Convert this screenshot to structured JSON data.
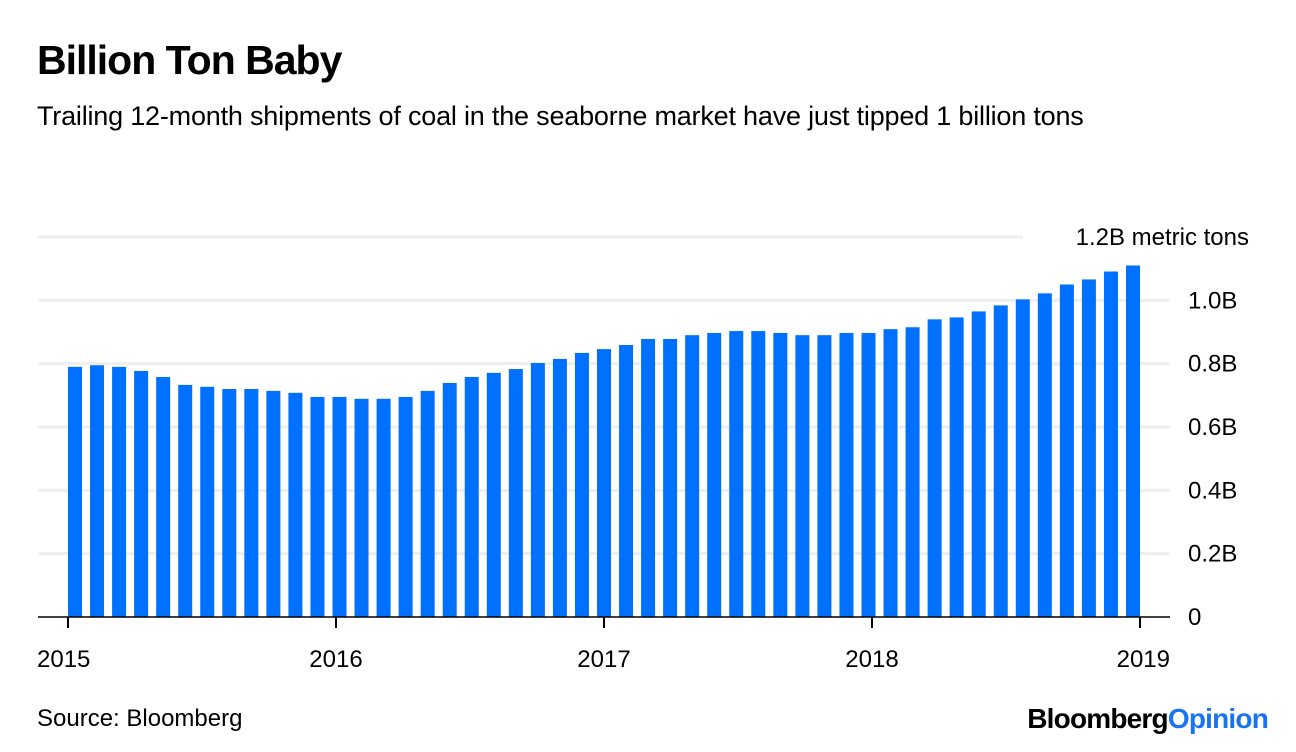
{
  "header": {
    "title": "Billion Ton Baby",
    "subtitle": "Trailing 12-month shipments of coal in the seaborne market have just tipped 1 billion tons"
  },
  "footer": {
    "source": "Source: Bloomberg",
    "brand_part1": "Bloomberg",
    "brand_part2": "Opinion"
  },
  "colors": {
    "bar": "#0070ff",
    "grid": "#eeeeee",
    "axis": "#000000",
    "brand_accent": "#1a73f0"
  },
  "chart_data": {
    "type": "bar",
    "title": "Billion Ton Baby",
    "subtitle": "Trailing 12-month shipments of coal in the seaborne market have just tipped 1 billion tons",
    "xlabel": "",
    "ylabel": "",
    "units_label": "1.2B metric tons",
    "unit": "billion metric tons",
    "ylim": [
      0,
      1.2
    ],
    "grid": true,
    "y_axis_side": "right",
    "y_ticks": [
      {
        "value": 0,
        "label": "0"
      },
      {
        "value": 0.2,
        "label": "0.2B"
      },
      {
        "value": 0.4,
        "label": "0.4B"
      },
      {
        "value": 0.6,
        "label": "0.6B"
      },
      {
        "value": 0.8,
        "label": "0.8B"
      },
      {
        "value": 1.0,
        "label": "1.0B"
      },
      {
        "value": 1.2,
        "label": "1.2B metric tons"
      }
    ],
    "x_ticks": [
      "2015",
      "2016",
      "2017",
      "2018",
      "2019"
    ],
    "categories": [
      "2015-01",
      "2015-02",
      "2015-03",
      "2015-04",
      "2015-05",
      "2015-06",
      "2015-07",
      "2015-08",
      "2015-09",
      "2015-10",
      "2015-11",
      "2015-12",
      "2016-01",
      "2016-02",
      "2016-03",
      "2016-04",
      "2016-05",
      "2016-06",
      "2016-07",
      "2016-08",
      "2016-09",
      "2016-10",
      "2016-11",
      "2016-12",
      "2017-01",
      "2017-02",
      "2017-03",
      "2017-04",
      "2017-05",
      "2017-06",
      "2017-07",
      "2017-08",
      "2017-09",
      "2017-10",
      "2017-11",
      "2017-12",
      "2018-01",
      "2018-02",
      "2018-03",
      "2018-04",
      "2018-05",
      "2018-06",
      "2018-07",
      "2018-08",
      "2018-09",
      "2018-10",
      "2018-11",
      "2018-12",
      "2019-01"
    ],
    "series": [
      {
        "name": "Trailing 12-month seaborne coal shipments",
        "values": [
          0.79,
          0.795,
          0.79,
          0.777,
          0.758,
          0.733,
          0.727,
          0.72,
          0.72,
          0.714,
          0.708,
          0.695,
          0.695,
          0.689,
          0.689,
          0.695,
          0.714,
          0.739,
          0.758,
          0.771,
          0.783,
          0.802,
          0.815,
          0.834,
          0.846,
          0.859,
          0.878,
          0.878,
          0.89,
          0.897,
          0.903,
          0.903,
          0.897,
          0.89,
          0.89,
          0.897,
          0.897,
          0.909,
          0.915,
          0.94,
          0.946,
          0.965,
          0.984,
          1.003,
          1.022,
          1.05,
          1.066,
          1.091,
          1.11
        ]
      }
    ]
  }
}
